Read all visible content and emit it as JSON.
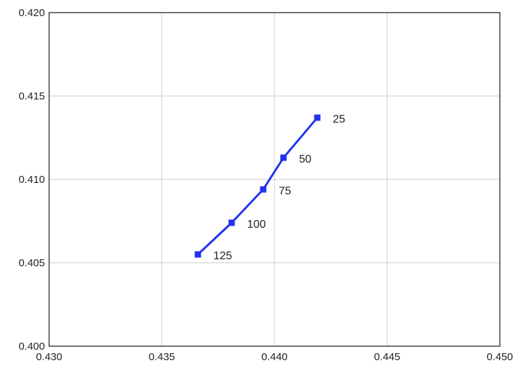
{
  "chart_data": {
    "type": "line",
    "title": "",
    "xlabel": "",
    "ylabel": "",
    "xlim": [
      0.43,
      0.45
    ],
    "ylim": [
      0.4,
      0.42
    ],
    "x_ticks": [
      "0.430",
      "0.435",
      "0.440",
      "0.445",
      "0.450"
    ],
    "y_ticks": [
      "0.400",
      "0.405",
      "0.410",
      "0.415",
      "0.420"
    ],
    "grid": true,
    "legend": "none",
    "series": [
      {
        "color": "#2233ee",
        "points": [
          {
            "x": 0.4366,
            "y": 0.4055,
            "label": "125"
          },
          {
            "x": 0.4381,
            "y": 0.4074,
            "label": "100"
          },
          {
            "x": 0.4395,
            "y": 0.4094,
            "label": "75"
          },
          {
            "x": 0.4404,
            "y": 0.4113,
            "label": "50"
          },
          {
            "x": 0.4419,
            "y": 0.4137,
            "label": "25"
          }
        ]
      }
    ]
  }
}
